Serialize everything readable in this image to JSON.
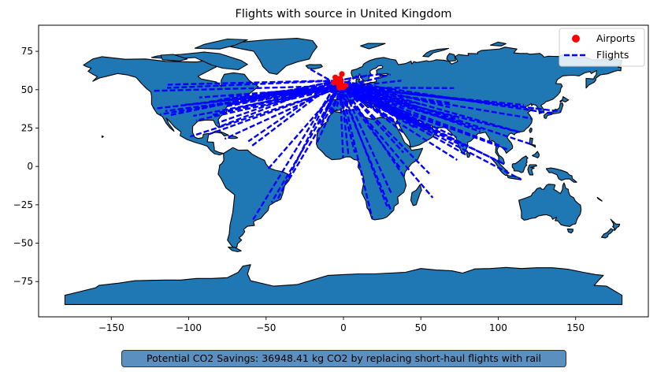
{
  "chart_data": {
    "type": "scatter",
    "title": "Flights with source in United Kingdom",
    "xlabel": "",
    "ylabel": "",
    "xlim": [
      -197,
      197
    ],
    "ylim": [
      -98,
      92
    ],
    "xticks": [
      -150,
      -100,
      -50,
      0,
      50,
      100,
      150
    ],
    "yticks": [
      -75,
      -50,
      -25,
      0,
      25,
      50,
      75
    ],
    "grid": false,
    "legend": {
      "placement": "top-right",
      "entries": [
        {
          "label": "Airports",
          "marker": "circle",
          "color": "#ff0000"
        },
        {
          "label": "Flights",
          "style": "dashed",
          "color": "#0000ff"
        }
      ]
    },
    "airports": [
      {
        "lon": -4.5,
        "lat": 55.9
      },
      {
        "lon": -3.4,
        "lat": 56.0
      },
      {
        "lon": -2.2,
        "lat": 57.2
      },
      {
        "lon": -1.7,
        "lat": 55.0
      },
      {
        "lon": -2.3,
        "lat": 53.4
      },
      {
        "lon": -1.3,
        "lat": 52.8
      },
      {
        "lon": -0.5,
        "lat": 51.5
      },
      {
        "lon": 0.2,
        "lat": 51.9
      },
      {
        "lon": -2.7,
        "lat": 51.4
      },
      {
        "lon": -3.0,
        "lat": 53.3
      },
      {
        "lon": -1.0,
        "lat": 60.2
      },
      {
        "lon": -6.2,
        "lat": 54.6
      },
      {
        "lon": -1.8,
        "lat": 52.5
      },
      {
        "lon": 1.3,
        "lat": 52.7
      },
      {
        "lon": -5.3,
        "lat": 58.0
      }
    ],
    "flight_origins": [
      [
        -0.5,
        51.5
      ],
      [
        -2.3,
        53.4
      ],
      [
        -1.8,
        52.5
      ],
      [
        -4.5,
        55.9
      ],
      [
        -3.4,
        56.0
      ],
      [
        -2.7,
        51.4
      ],
      [
        0.2,
        51.9
      ]
    ],
    "flight_destinations": [
      [
        -122.4,
        37.6
      ],
      [
        -118.4,
        33.9
      ],
      [
        -123.2,
        49.2
      ],
      [
        -114.0,
        51.1
      ],
      [
        -113.6,
        53.3
      ],
      [
        -104.7,
        39.9
      ],
      [
        -97.0,
        32.9
      ],
      [
        -95.3,
        29.9
      ],
      [
        -87.9,
        42.0
      ],
      [
        -84.4,
        33.6
      ],
      [
        -80.3,
        25.8
      ],
      [
        -81.3,
        28.4
      ],
      [
        -79.6,
        43.7
      ],
      [
        -73.8,
        45.5
      ],
      [
        -73.8,
        40.6
      ],
      [
        -71.0,
        42.4
      ],
      [
        -77.0,
        38.9
      ],
      [
        -75.2,
        39.9
      ],
      [
        -112.0,
        33.4
      ],
      [
        -115.2,
        36.1
      ],
      [
        -93.2,
        44.9
      ],
      [
        -83.4,
        42.2
      ],
      [
        -80.2,
        35.2
      ],
      [
        -76.7,
        18.0
      ],
      [
        -61.5,
        16.3
      ],
      [
        -59.5,
        13.1
      ],
      [
        -86.9,
        21.0
      ],
      [
        -99.1,
        19.4
      ],
      [
        -63.6,
        44.9
      ],
      [
        -52.7,
        47.6
      ],
      [
        -46.5,
        -23.4
      ],
      [
        -43.2,
        -22.8
      ],
      [
        -58.5,
        -34.8
      ],
      [
        -48.5,
        -1.4
      ],
      [
        -34.9,
        -8.1
      ],
      [
        -22.6,
        64.0
      ],
      [
        -16.6,
        28.0
      ],
      [
        -15.4,
        27.9
      ],
      [
        -13.6,
        29.0
      ],
      [
        -9.1,
        38.8
      ],
      [
        -8.6,
        41.2
      ],
      [
        -8.0,
        37.0
      ],
      [
        -3.6,
        40.5
      ],
      [
        2.1,
        41.3
      ],
      [
        -4.5,
        36.7
      ],
      [
        2.7,
        39.6
      ],
      [
        -0.6,
        38.3
      ],
      [
        2.4,
        48.7
      ],
      [
        5.2,
        43.4
      ],
      [
        7.2,
        43.7
      ],
      [
        4.8,
        52.3
      ],
      [
        8.6,
        50.0
      ],
      [
        11.8,
        48.4
      ],
      [
        13.3,
        52.4
      ],
      [
        8.6,
        47.5
      ],
      [
        12.3,
        41.8
      ],
      [
        9.3,
        45.6
      ],
      [
        14.3,
        40.9
      ],
      [
        23.9,
        37.9
      ],
      [
        24.9,
        60.3
      ],
      [
        18.0,
        59.7
      ],
      [
        10.7,
        60.2
      ],
      [
        12.6,
        55.6
      ],
      [
        21.0,
        52.2
      ],
      [
        19.3,
        47.4
      ],
      [
        16.6,
        48.1
      ],
      [
        14.3,
        50.1
      ],
      [
        26.1,
        44.6
      ],
      [
        28.8,
        41.3
      ],
      [
        30.4,
        59.8
      ],
      [
        37.4,
        55.9
      ],
      [
        30.9,
        50.3
      ],
      [
        -7.6,
        33.4
      ],
      [
        3.2,
        36.7
      ],
      [
        10.2,
        36.9
      ],
      [
        31.4,
        30.1
      ],
      [
        34.0,
        27.9
      ],
      [
        -17.5,
        14.7
      ],
      [
        -0.2,
        5.6
      ],
      [
        3.3,
        6.6
      ],
      [
        7.3,
        9.0
      ],
      [
        38.8,
        9.0
      ],
      [
        36.9,
        -1.3
      ],
      [
        39.2,
        -6.9
      ],
      [
        31.1,
        -17.9
      ],
      [
        28.2,
        -26.1
      ],
      [
        18.6,
        -33.9
      ],
      [
        31.1,
        -29.6
      ],
      [
        55.5,
        -4.7
      ],
      [
        57.7,
        -20.4
      ],
      [
        34.9,
        32.0
      ],
      [
        35.5,
        33.8
      ],
      [
        36.0,
        31.7
      ],
      [
        46.7,
        24.9
      ],
      [
        39.2,
        21.7
      ],
      [
        50.6,
        26.3
      ],
      [
        51.6,
        25.3
      ],
      [
        54.7,
        24.4
      ],
      [
        55.4,
        25.3
      ],
      [
        58.3,
        23.6
      ],
      [
        47.9,
        29.2
      ],
      [
        44.2,
        33.3
      ],
      [
        51.3,
        35.7
      ],
      [
        67.2,
        24.9
      ],
      [
        74.4,
        31.5
      ],
      [
        77.1,
        28.6
      ],
      [
        72.9,
        19.1
      ],
      [
        77.7,
        13.0
      ],
      [
        80.2,
        13.0
      ],
      [
        88.4,
        22.7
      ],
      [
        90.4,
        23.8
      ],
      [
        79.9,
        7.2
      ],
      [
        73.5,
        4.2
      ],
      [
        100.7,
        13.7
      ],
      [
        101.7,
        2.7
      ],
      [
        103.9,
        1.4
      ],
      [
        114.0,
        22.3
      ],
      [
        113.9,
        22.3
      ],
      [
        121.8,
        31.2
      ],
      [
        116.6,
        40.1
      ],
      [
        126.4,
        37.5
      ],
      [
        140.4,
        35.8
      ],
      [
        135.4,
        34.4
      ],
      [
        121.0,
        14.5
      ],
      [
        106.7,
        10.8
      ],
      [
        76.9,
        43.4
      ],
      [
        69.3,
        41.3
      ],
      [
        49.9,
        40.5
      ],
      [
        44.4,
        41.7
      ],
      [
        44.4,
        40.1
      ],
      [
        68.8,
        38.5
      ],
      [
        71.4,
        51.0
      ],
      [
        115.0,
        -8.7
      ]
    ]
  },
  "footnote": "Potential CO2 Savings: 36948.41 kg CO2 by replacing short-haul flights with rail",
  "colors": {
    "land_fill": "#1f77b4",
    "land_edge": "#000000",
    "flight_line": "#0000ff",
    "airport_marker": "#ff0000",
    "footnote_bg": "#5b8fbf"
  }
}
